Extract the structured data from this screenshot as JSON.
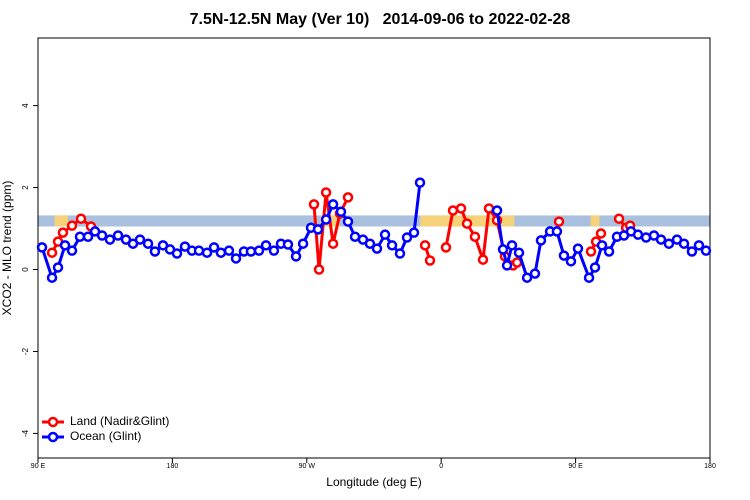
{
  "chart_data": {
    "type": "line",
    "title": "7.5N-12.5N May (Ver 10)   2014-09-06 to 2022-02-28",
    "x_label": "Longitude (deg E)",
    "y_label": "XCO2 - MLO trend (ppm)",
    "xlim": [
      90,
      540
    ],
    "ylim": [
      -4.6,
      5.65
    ],
    "xticks": [
      {
        "value": 90,
        "label": "90 E"
      },
      180,
      {
        "value": 270,
        "label": "90 W"
      },
      {
        "value": 360,
        "label": "0"
      },
      {
        "value": 450,
        "label": "90 E"
      },
      {
        "value": 540,
        "label": "180"
      }
    ],
    "yticks": [
      -4,
      -2,
      0,
      2,
      4
    ],
    "legend": "bottomleft",
    "band": {
      "y": [
        1.05,
        1.32
      ],
      "color": "#a9c0de",
      "land_color": "#f5d27a",
      "land_x": [
        [
          101,
          110
        ],
        [
          279,
          292
        ],
        [
          346,
          409
        ],
        [
          460,
          466
        ]
      ]
    },
    "series": [
      {
        "name": "Land (Nadir&Glint)",
        "color": "#ff0000",
        "x": [
          99.4,
          103.4,
          106.7,
          112.8,
          118.8,
          125.5,
          null,
          274.8,
          278.2,
          282.9,
          287.6,
          292.2,
          297.6,
          null,
          349.2,
          352.5,
          null,
          363.2,
          367.9,
          373.3,
          377.3,
          382.6,
          388.0,
          392.0,
          397.4,
          402.7,
          408.1,
          410.8,
          null,
          438.9,
          null,
          460.3,
          463.7,
          467.0,
          null,
          479.1,
          483.8,
          486.5
        ],
        "values": [
          0.41,
          0.68,
          0.9,
          1.07,
          1.24,
          1.05,
          null,
          1.59,
          0.0,
          1.88,
          0.63,
          1.37,
          1.76,
          null,
          0.59,
          0.22,
          null,
          0.54,
          1.44,
          1.49,
          1.12,
          0.8,
          0.24,
          1.49,
          1.2,
          0.32,
          0.1,
          0.17,
          null,
          1.17,
          null,
          0.44,
          0.68,
          0.88,
          null,
          1.24,
          1.02,
          1.07
        ]
      },
      {
        "name": "Ocean (Glint)",
        "color": "#0000ff",
        "x": [
          92.7,
          99.4,
          103.4,
          108.1,
          112.8,
          118.1,
          123.5,
          128.2,
          132.9,
          138.2,
          143.6,
          148.9,
          153.6,
          158.3,
          163.7,
          168.3,
          173.7,
          178.4,
          183.1,
          188.4,
          193.1,
          197.8,
          203.2,
          207.9,
          212.5,
          217.9,
          222.6,
          227.9,
          232.6,
          238.0,
          242.7,
          248.0,
          252.7,
          257.4,
          262.8,
          267.5,
          272.8,
          277.5,
          282.9,
          287.6,
          292.9,
          297.6,
          302.3,
          307.6,
          312.3,
          317.0,
          322.4,
          327.1,
          332.4,
          337.1,
          341.8,
          345.8,
          null,
          397.4,
          401.4,
          404.1,
          407.4,
          412.1,
          417.5,
          422.8,
          426.8,
          432.9,
          437.5,
          442.2,
          446.9,
          451.6,
          459.0,
          463.0,
          467.7,
          472.4,
          477.7,
          482.4,
          487.1,
          491.8,
          497.2,
          502.5,
          507.2,
          512.5,
          517.9,
          522.6,
          527.9,
          532.6,
          537.3
        ],
        "values": [
          0.54,
          -0.2,
          0.05,
          0.59,
          0.46,
          0.8,
          0.8,
          0.93,
          0.83,
          0.73,
          0.83,
          0.73,
          0.63,
          0.73,
          0.63,
          0.44,
          0.59,
          0.49,
          0.39,
          0.56,
          0.46,
          0.46,
          0.41,
          0.54,
          0.41,
          0.46,
          0.27,
          0.44,
          0.44,
          0.46,
          0.59,
          0.46,
          0.63,
          0.61,
          0.32,
          0.63,
          1.02,
          0.98,
          1.22,
          1.59,
          1.41,
          1.17,
          0.8,
          0.73,
          0.63,
          0.51,
          0.85,
          0.59,
          0.39,
          0.78,
          0.9,
          2.12,
          null,
          1.44,
          0.49,
          0.1,
          0.59,
          0.41,
          -0.2,
          -0.1,
          0.71,
          0.93,
          0.93,
          0.34,
          0.2,
          0.51,
          -0.2,
          0.05,
          0.59,
          0.44,
          0.8,
          0.83,
          0.93,
          0.85,
          0.78,
          0.83,
          0.73,
          0.63,
          0.73,
          0.63,
          0.44,
          0.59,
          0.46
        ]
      }
    ]
  }
}
